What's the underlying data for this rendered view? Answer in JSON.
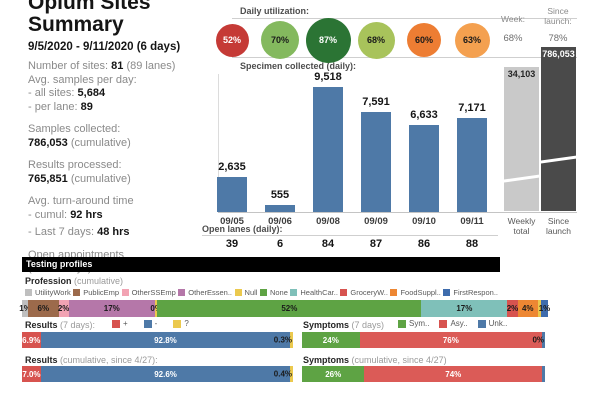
{
  "summary": {
    "title_line1": "Opium Sites",
    "title_line2": "Summary",
    "date_range": "9/5/2020 - 9/11/2020 (6 days)",
    "sites_label": "Number of sites:",
    "sites_value": "81",
    "sites_suffix": "(89 lanes)",
    "avg_label": "Avg. samples per day:",
    "all_sites_label": "- all sites:",
    "all_sites_value": "5,684",
    "per_lane_label": "- per lane:",
    "per_lane_value": "89",
    "samples_label": "Samples collected:",
    "samples_value": "786,053",
    "samples_suffix": "(cumulative)",
    "processed_label": "Results processed:",
    "processed_value": "765,851",
    "processed_suffix": "(cumulative)",
    "tat_label": "Avg. turn-around time",
    "tat_cumul_label": "- cumul:",
    "tat_cumul_value": "92 hrs",
    "tat_week_label": "- Last 7 days:",
    "tat_week_value": "48 hrs",
    "appt_label1": "Open appointments",
    "appt_label2": "(next 3 days):",
    "appt_value": "58%"
  },
  "utilization": {
    "title": "Daily utilization:",
    "week_label": "Week:",
    "week_value": "68%",
    "launch_label": "Since launch:",
    "launch_value": "78%",
    "circles": [
      {
        "label": "52%",
        "color": "#C53A36",
        "text_color": "#ffffff",
        "size": 33
      },
      {
        "label": "70%",
        "color": "#84B95E",
        "text_color": "#1a1a1a",
        "size": 38
      },
      {
        "label": "87%",
        "color": "#2B7434",
        "text_color": "#ffffff",
        "size": 45
      },
      {
        "label": "68%",
        "color": "#A8C35B",
        "text_color": "#1a1a1a",
        "size": 37
      },
      {
        "label": "60%",
        "color": "#ED7D33",
        "text_color": "#1a1a1a",
        "size": 34
      },
      {
        "label": "63%",
        "color": "#F4A04F",
        "text_color": "#1a1a1a",
        "size": 35
      }
    ]
  },
  "specimen": {
    "title": "Specimen collected (daily):",
    "bar_color": "#4E79A7",
    "days": [
      {
        "date": "09/05",
        "value": 2635,
        "label": "2,635",
        "open_lanes": "39"
      },
      {
        "date": "09/06",
        "value": 555,
        "label": "555",
        "open_lanes": "6"
      },
      {
        "date": "09/08",
        "value": 9518,
        "label": "9,518",
        "open_lanes": "84"
      },
      {
        "date": "09/09",
        "value": 7591,
        "label": "7,591",
        "open_lanes": "87"
      },
      {
        "date": "09/10",
        "value": 6633,
        "label": "6,633",
        "open_lanes": "86"
      },
      {
        "date": "09/11",
        "value": 7171,
        "label": "7,171",
        "open_lanes": "88"
      }
    ],
    "weekly_total": {
      "value_label": "34,103",
      "caption": "Weekly total",
      "color": "#C9C9C9",
      "text_color": "#262626"
    },
    "since_launch": {
      "value_label": "786,053",
      "caption": "Since launch",
      "color": "#4A4A4A",
      "text_color": "#ffffff"
    },
    "open_lanes_title": "Open lanes (daily):"
  },
  "testing": {
    "header": "Testing profiles",
    "profession": {
      "title": "Profession",
      "subtitle": "(cumulative)",
      "legend": [
        {
          "label": "UtilityWork",
          "color": "#BFBFBF"
        },
        {
          "label": "PublicEmp",
          "color": "#9C6A4B"
        },
        {
          "label": "OtherSSEmp",
          "color": "#F2A3B3"
        },
        {
          "label": "OtherEssen..",
          "color": "#B577A9"
        },
        {
          "label": "Null",
          "color": "#EBC94E"
        },
        {
          "label": "None",
          "color": "#5EA344"
        },
        {
          "label": "HealthCar..",
          "color": "#7FC0B9"
        },
        {
          "label": "GroceryW..",
          "color": "#D7534F"
        },
        {
          "label": "FoodSuppl..",
          "color": "#ED8733"
        },
        {
          "label": "FirstRespon..",
          "color": "#3E6CAD"
        }
      ],
      "segments": [
        {
          "label": "1%",
          "weight": 1.2,
          "color": "#BFBFBF"
        },
        {
          "label": "6%",
          "weight": 6,
          "color": "#9C6A4B"
        },
        {
          "label": "2%",
          "weight": 2,
          "color": "#F2A3B3"
        },
        {
          "label": "17%",
          "weight": 17,
          "color": "#B577A9"
        },
        {
          "label": "0%",
          "weight": 0.5,
          "color": "#EBC94E"
        },
        {
          "label": "52%",
          "weight": 52,
          "color": "#5EA344"
        },
        {
          "label": "17%",
          "weight": 17,
          "color": "#7FC0B9"
        },
        {
          "label": "2%",
          "weight": 2,
          "color": "#D7534F"
        },
        {
          "label": "4%",
          "weight": 4,
          "color": "#ED8733"
        },
        {
          "label": "",
          "weight": 0.6,
          "color": "#EBC94E"
        },
        {
          "label": "1%",
          "weight": 1.4,
          "color": "#3E6CAD"
        }
      ]
    },
    "results7": {
      "title": "Results",
      "subtitle": "(7 days):",
      "legend": [
        {
          "label": "+",
          "color": "#D7534F"
        },
        {
          "label": "-",
          "color": "#4E79A7"
        },
        {
          "label": "?",
          "color": "#EBC94E"
        }
      ],
      "segments": [
        {
          "label": "6.9%",
          "weight": 6.9,
          "color": "#D7534F",
          "text_color": "#ffffff"
        },
        {
          "label": "92.8%",
          "weight": 92.8,
          "color": "#4E79A7",
          "text_color": "#ffffff"
        },
        {
          "label": "",
          "weight": 1.0,
          "color": "#EBC94E"
        }
      ],
      "end_label": "0.3%"
    },
    "symptoms7": {
      "title": "Symptoms",
      "subtitle": "(7 days)",
      "legend": [
        {
          "label": "Sym..",
          "color": "#5EA344"
        },
        {
          "label": "Asy..",
          "color": "#D7534F"
        },
        {
          "label": "Unk..",
          "color": "#4E79A7"
        }
      ],
      "segments": [
        {
          "label": "24%",
          "weight": 24,
          "color": "#5EA344",
          "text_color": "#ffffff"
        },
        {
          "label": "76%",
          "weight": 76,
          "color": "#DB5B57",
          "text_color": "#ffffff"
        },
        {
          "label": "",
          "weight": 1.2,
          "color": "#4E79A7"
        }
      ],
      "end_label": "0%"
    },
    "results_cum": {
      "title": "Results",
      "subtitle": "(cumulative, since 4/27):",
      "segments": [
        {
          "label": "7.0%",
          "weight": 7.0,
          "color": "#D7534F",
          "text_color": "#ffffff"
        },
        {
          "label": "92.6%",
          "weight": 92.6,
          "color": "#4E79A7",
          "text_color": "#ffffff"
        },
        {
          "label": "",
          "weight": 1.0,
          "color": "#EBC94E"
        }
      ],
      "end_label": "0.4%"
    },
    "symptoms_cum": {
      "title": "Symptoms",
      "subtitle": "(cumulative, since 4/27)",
      "segments": [
        {
          "label": "26%",
          "weight": 26,
          "color": "#5EA344",
          "text_color": "#ffffff"
        },
        {
          "label": "74%",
          "weight": 74,
          "color": "#DB5B57",
          "text_color": "#ffffff"
        },
        {
          "label": "",
          "weight": 1.2,
          "color": "#4E79A7"
        }
      ],
      "end_label": ""
    }
  },
  "chart_data": [
    {
      "type": "bar",
      "title": "Daily utilization",
      "unit": "%",
      "categories": [
        "09/05",
        "09/06",
        "09/08",
        "09/09",
        "09/10",
        "09/11"
      ],
      "values": [
        52,
        70,
        87,
        68,
        60,
        63
      ],
      "week_total": 68,
      "since_launch": 78
    },
    {
      "type": "bar",
      "title": "Specimen collected (daily)",
      "categories": [
        "09/05",
        "09/06",
        "09/08",
        "09/09",
        "09/10",
        "09/11"
      ],
      "values": [
        2635,
        555,
        9518,
        7591,
        6633,
        7171
      ],
      "weekly_total": 34103,
      "since_launch": 786053,
      "ylim": [
        0,
        9518
      ],
      "bar_color": "#4E79A7"
    },
    {
      "type": "bar",
      "title": "Open lanes (daily)",
      "categories": [
        "09/05",
        "09/06",
        "09/08",
        "09/09",
        "09/10",
        "09/11"
      ],
      "values": [
        39,
        6,
        84,
        87,
        86,
        88
      ]
    },
    {
      "type": "bar",
      "stacked": true,
      "title": "Profession (cumulative)",
      "unit": "%",
      "categories": [
        "UtilityWork",
        "PublicEmp",
        "OtherSSEmp",
        "OtherEssen..",
        "Null",
        "None",
        "HealthCar..",
        "GroceryW..",
        "FoodSuppl..",
        "FirstRespon.."
      ],
      "values": [
        1,
        6,
        2,
        17,
        0,
        52,
        17,
        2,
        4,
        1
      ],
      "legend_position": "top"
    },
    {
      "type": "bar",
      "stacked": true,
      "title": "Results (7 days)",
      "unit": "%",
      "categories": [
        "+",
        "-",
        "?"
      ],
      "values": [
        6.9,
        92.8,
        0.3
      ]
    },
    {
      "type": "bar",
      "stacked": true,
      "title": "Symptoms (7 days)",
      "unit": "%",
      "categories": [
        "Sym..",
        "Asy..",
        "Unk.."
      ],
      "values": [
        24,
        76,
        0
      ]
    },
    {
      "type": "bar",
      "stacked": true,
      "title": "Results (cumulative, since 4/27)",
      "unit": "%",
      "categories": [
        "+",
        "-",
        "?"
      ],
      "values": [
        7.0,
        92.6,
        0.4
      ]
    },
    {
      "type": "bar",
      "stacked": true,
      "title": "Symptoms (cumulative, since 4/27)",
      "unit": "%",
      "categories": [
        "Sym..",
        "Asy..",
        "Unk.."
      ],
      "values": [
        26,
        74,
        0
      ]
    }
  ]
}
